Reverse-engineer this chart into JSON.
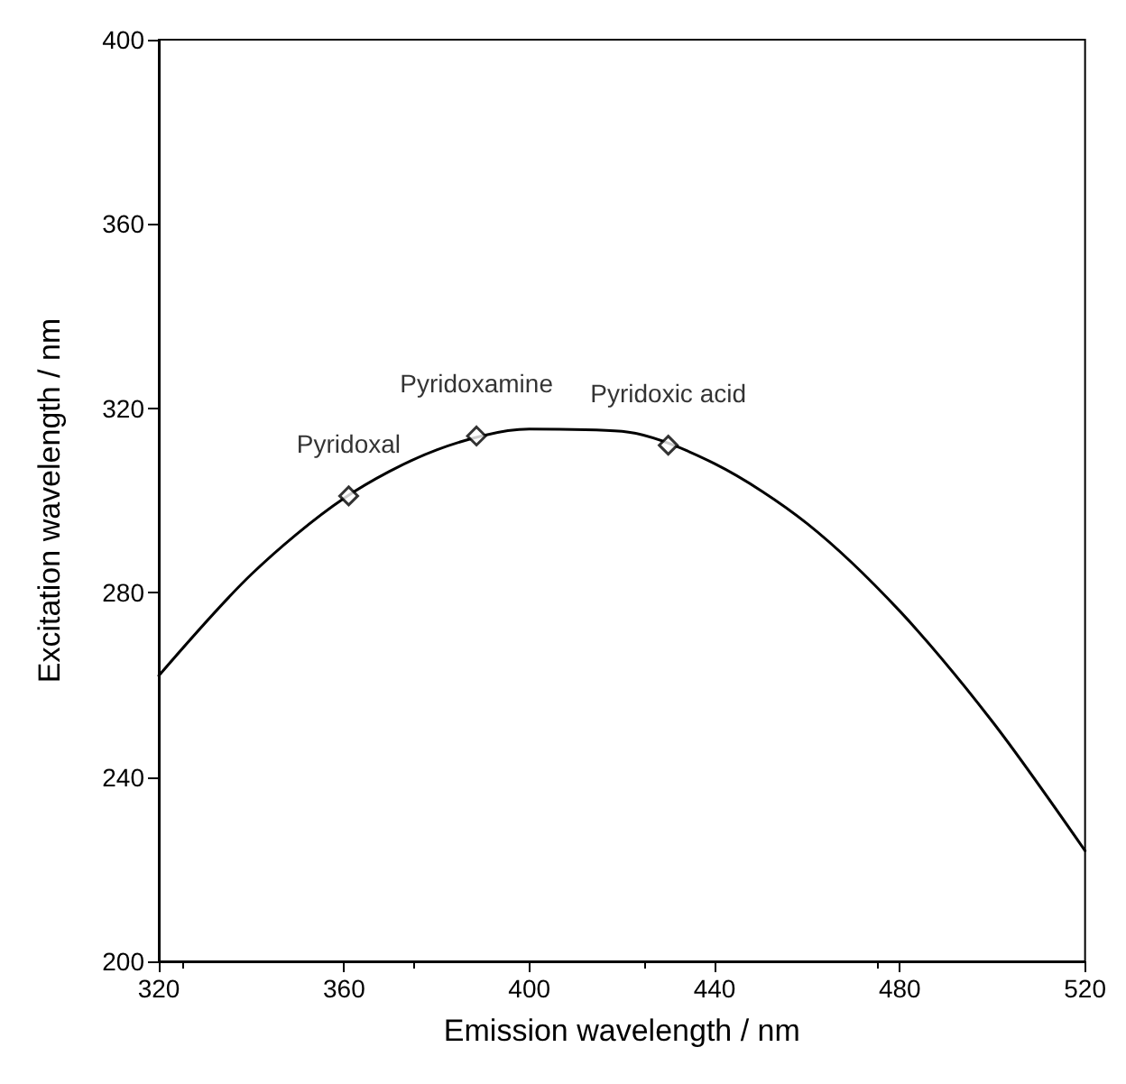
{
  "chart_data": {
    "type": "line",
    "xlabel": "Emission wavelength / nm",
    "ylabel": "Excitation wavelength / nm",
    "series": [
      {
        "color": "#000000",
        "marker": "none",
        "x": [
          320,
          340,
          360,
          380,
          400,
          420,
          440,
          460,
          480,
          500,
          520
        ],
        "values": [
          262,
          284,
          300.5,
          311,
          315.5,
          315,
          308,
          295,
          276,
          252,
          224
        ]
      },
      {
        "type": "scatter",
        "color": "#000000",
        "marker": "diamond",
        "x": [
          361,
          388.6,
          430
        ],
        "values": [
          301,
          314,
          312
        ]
      }
    ],
    "annotations": [
      {
        "text": "Pyridoxal",
        "x": 361,
        "y": 301
      },
      {
        "text": "Pyridoxamine",
        "x": 388.6,
        "y": 314
      },
      {
        "text": "Pyridoxic acid",
        "x": 430,
        "y": 312
      }
    ],
    "xlim": [
      320,
      520
    ],
    "xticks": [
      320,
      360,
      400,
      440,
      480,
      520
    ],
    "ylim": [
      200,
      400
    ],
    "yticks": [
      200,
      240,
      280,
      320,
      360,
      400
    ],
    "grid": false,
    "line_style": "solid"
  }
}
